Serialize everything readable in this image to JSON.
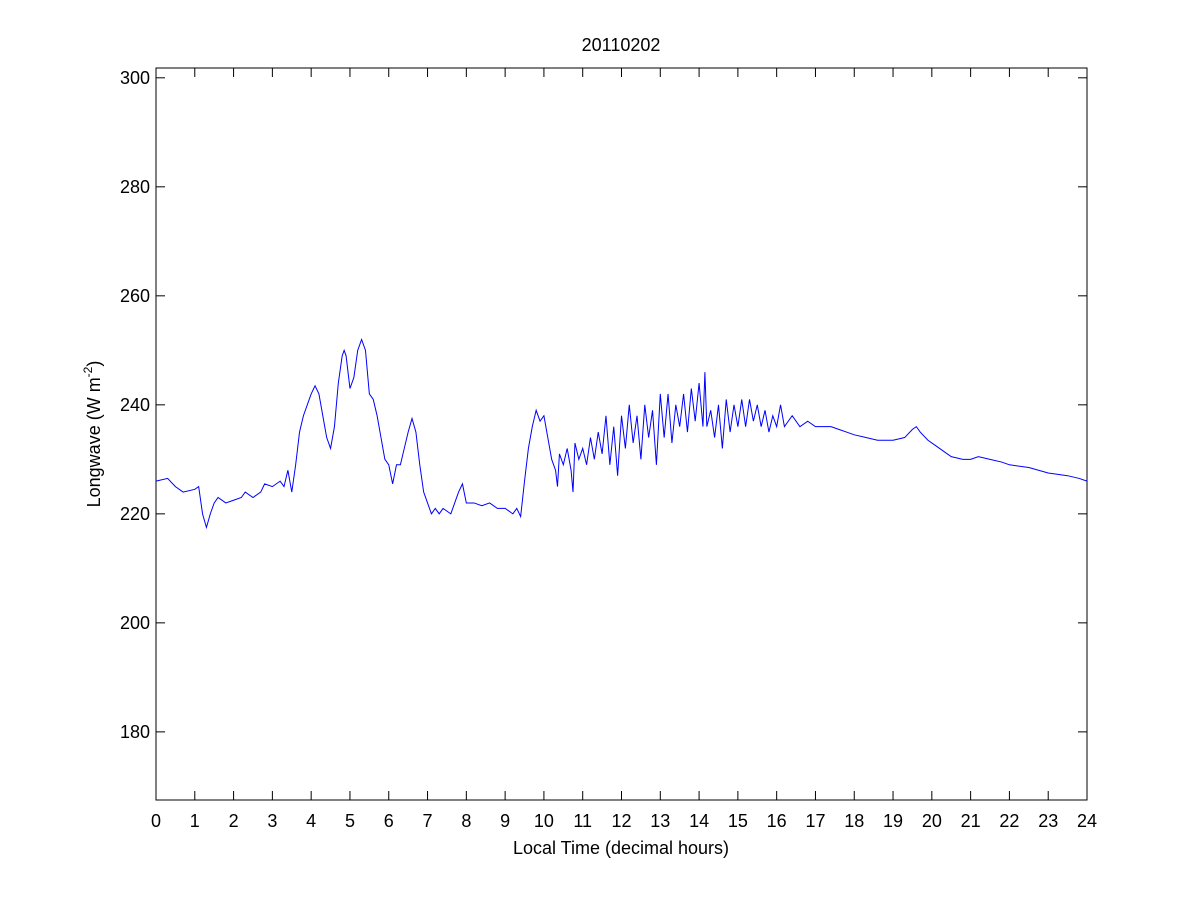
{
  "chart_data": {
    "type": "line",
    "title": "20110202",
    "x_label": "Local Time (decimal hours)",
    "y_label": {
      "main": "Longwave (W m",
      "superscript": "-2",
      "suffix": ")"
    },
    "color": "#0000ff",
    "xlim": [
      0,
      24
    ],
    "xticks": [
      0,
      1,
      2,
      3,
      4,
      5,
      6,
      7,
      8,
      9,
      10,
      11,
      12,
      13,
      14,
      15,
      16,
      17,
      18,
      19,
      20,
      21,
      22,
      23,
      24
    ],
    "ylim": [
      167.5,
      301.8
    ],
    "yticks": [
      180,
      200,
      220,
      240,
      260,
      280,
      300
    ],
    "x": [
      0,
      0.3,
      0.5,
      0.7,
      1.0,
      1.1,
      1.2,
      1.3,
      1.4,
      1.5,
      1.6,
      1.8,
      2.0,
      2.2,
      2.3,
      2.5,
      2.7,
      2.8,
      3.0,
      3.2,
      3.3,
      3.4,
      3.5,
      3.6,
      3.7,
      3.8,
      4.0,
      4.1,
      4.2,
      4.3,
      4.4,
      4.5,
      4.6,
      4.7,
      4.8,
      4.85,
      4.9,
      5.0,
      5.1,
      5.2,
      5.3,
      5.4,
      5.5,
      5.6,
      5.7,
      5.8,
      5.9,
      6.0,
      6.1,
      6.2,
      6.3,
      6.4,
      6.5,
      6.6,
      6.7,
      6.8,
      6.9,
      7.0,
      7.1,
      7.2,
      7.3,
      7.4,
      7.6,
      7.7,
      7.8,
      7.9,
      8.0,
      8.2,
      8.4,
      8.6,
      8.8,
      9.0,
      9.2,
      9.3,
      9.4,
      9.5,
      9.6,
      9.7,
      9.8,
      9.9,
      10.0,
      10.1,
      10.2,
      10.3,
      10.35,
      10.4,
      10.5,
      10.6,
      10.7,
      10.75,
      10.8,
      10.9,
      11.0,
      11.1,
      11.2,
      11.3,
      11.4,
      11.5,
      11.6,
      11.7,
      11.8,
      11.9,
      12.0,
      12.1,
      12.2,
      12.3,
      12.4,
      12.5,
      12.6,
      12.7,
      12.8,
      12.9,
      13.0,
      13.1,
      13.2,
      13.3,
      13.4,
      13.5,
      13.6,
      13.7,
      13.8,
      13.9,
      14.0,
      14.1,
      14.15,
      14.2,
      14.3,
      14.4,
      14.5,
      14.6,
      14.7,
      14.8,
      14.9,
      15.0,
      15.1,
      15.2,
      15.3,
      15.4,
      15.5,
      15.6,
      15.7,
      15.8,
      15.9,
      16.0,
      16.1,
      16.2,
      16.4,
      16.6,
      16.8,
      17.0,
      17.2,
      17.4,
      17.6,
      17.8,
      18.0,
      18.3,
      18.6,
      19.0,
      19.3,
      19.5,
      19.6,
      19.7,
      19.9,
      20.1,
      20.3,
      20.5,
      20.8,
      21.0,
      21.2,
      21.5,
      21.8,
      22.0,
      22.5,
      23.0,
      23.5,
      23.8,
      24.0
    ],
    "values": [
      226,
      226.5,
      225,
      224,
      224.5,
      225,
      220,
      217.5,
      220,
      222,
      223,
      222,
      222.5,
      223,
      224,
      223,
      224,
      225.5,
      225,
      226,
      225,
      228,
      224,
      229,
      235,
      238,
      242,
      243.5,
      242,
      238,
      234,
      232,
      236,
      244,
      249,
      250,
      249,
      243,
      245,
      250,
      252,
      250,
      242,
      241,
      238,
      234,
      230,
      229,
      225.5,
      229,
      229,
      232,
      235,
      237.5,
      235,
      229,
      224,
      222,
      220,
      221,
      220,
      221,
      220,
      222,
      224,
      225.5,
      222,
      222,
      221.5,
      222,
      221,
      221,
      220,
      221,
      219.5,
      226,
      232,
      236,
      239,
      237,
      238,
      234,
      230,
      228,
      225,
      231,
      229,
      232,
      228,
      224,
      233,
      230,
      232,
      229,
      234,
      230,
      235,
      231,
      238,
      229,
      236,
      227,
      238,
      232,
      240,
      233,
      238,
      230,
      240,
      234,
      239,
      229,
      242,
      234,
      242,
      233,
      240,
      236,
      242,
      235,
      243,
      237,
      244,
      236,
      246,
      236,
      239,
      234,
      240,
      232,
      241,
      235,
      240,
      236,
      241,
      236,
      241,
      237,
      240,
      236,
      239,
      235,
      238,
      236,
      240,
      236,
      238,
      236,
      237,
      236,
      236,
      236,
      235.5,
      235,
      234.5,
      234,
      233.5,
      233.5,
      234,
      235.5,
      236,
      235,
      233.5,
      232.5,
      231.5,
      230.5,
      230,
      230,
      230.5,
      230,
      229.5,
      229,
      228.5,
      227.5,
      227,
      226.5,
      226
    ]
  }
}
